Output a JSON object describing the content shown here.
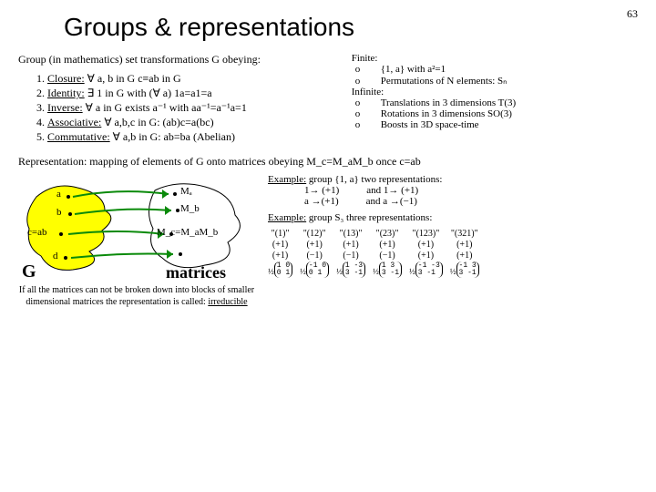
{
  "page_number": "63",
  "title": "Groups & representations",
  "intro": "Group (in mathematics) set transformations G obeying:",
  "axioms": [
    {
      "name": "Closure:",
      "text": " ∀ a, b in G c≡ab in G"
    },
    {
      "name": "Identity:",
      "text": " ∃ 1 in G with (∀ a) 1a=a1=a"
    },
    {
      "name": "Inverse:",
      "text": " ∀ a in G exists a⁻¹ with aa⁻¹=a⁻¹a=1"
    },
    {
      "name": "Associative:",
      "text": " ∀ a,b,c in G: (ab)c=a(bc)"
    },
    {
      "name": "Commutative:",
      "text": " ∀ a,b in G: ab=ba (Abelian)"
    }
  ],
  "finite_hdr": "Finite:",
  "finite_items": [
    "{1, a} with a²=1",
    "Permutations of N elements: Sₙ"
  ],
  "infinite_hdr": "Infinite:",
  "infinite_items": [
    "Translations in 3 dimensions T(3)",
    "Rotations in 3 dimensions SO(3)",
    "Boosts in 3D space-time"
  ],
  "rep_line": "Representation: mapping of elements of G onto matrices obeying M_c=M_aM_b once c=ab",
  "blob": {
    "g_color": "#ffff00",
    "m_color": "#ffffff",
    "stroke": "#000000",
    "arrow_color": "#0a8a0a",
    "labels": {
      "a": "a",
      "b": "b",
      "c": "c=ab",
      "d": "d",
      "G": "G",
      "Ma": "Mₐ",
      "Mb": "M_b",
      "Mc": "M_c=M_aM_b",
      "matrices": "matrices"
    }
  },
  "irr_text": "If all the matrices can not be broken down into blocks of smaller dimensional matrices the representation is called: ",
  "irr_word": "irreducible",
  "ex1_hdr": "Example:",
  "ex1_text": " group {1, a} two representations:",
  "ex1_rows": [
    [
      "1→ (+1)",
      "and 1→ (+1)"
    ],
    [
      "a →(+1)",
      "and a →(−1)"
    ]
  ],
  "ex2_hdr": "Example:",
  "ex2_text": " group S₃ three representations:",
  "perm_headers": [
    "\"(1)\"",
    "\"(12)\"",
    "\"(13)\"",
    "\"(23)\"",
    "\"(123)\"",
    "\"(321)\""
  ],
  "perm_row1": [
    "(+1)",
    "(+1)",
    "(+1)",
    "(+1)",
    "(+1)",
    "(+1)"
  ],
  "perm_row2": [
    "(+1)",
    "(−1)",
    "(−1)",
    "(−1)",
    "(+1)",
    "(+1)"
  ],
  "perm_mats": [
    [
      [
        "1 0"
      ],
      [
        "0 1"
      ]
    ],
    [
      [
        "-1 0"
      ],
      [
        "0 1"
      ]
    ],
    [
      [
        "1 -3"
      ],
      [
        "3 -1"
      ]
    ],
    [
      [
        "1 3"
      ],
      [
        "3 -1"
      ]
    ],
    [
      [
        "-1 -3"
      ],
      [
        "3 -1"
      ]
    ],
    [
      [
        "-1 3"
      ],
      [
        "3 -1"
      ]
    ]
  ],
  "perm_frac": "½"
}
